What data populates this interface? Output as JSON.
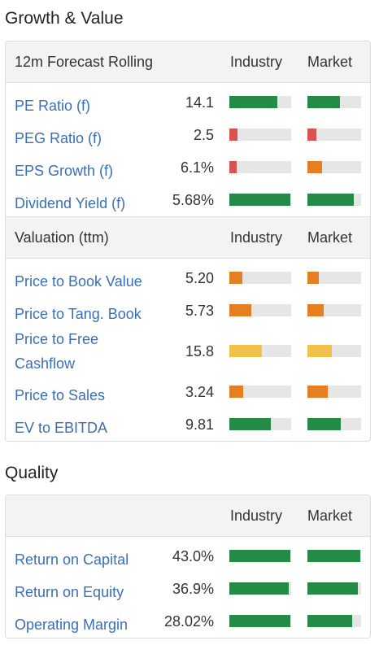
{
  "growth": {
    "title": "Growth & Value",
    "forecast_header": {
      "label": "12m Forecast Rolling",
      "industry": "Industry",
      "market": "Market"
    },
    "forecast_rows": [
      {
        "name": "PE Ratio (f)",
        "value": "14.1",
        "industry_level": 0.78,
        "market_level": 0.6,
        "industry_color": "#238b45",
        "market_color": "#238b45"
      },
      {
        "name": "PEG Ratio (f)",
        "value": "2.5",
        "industry_level": 0.13,
        "market_level": 0.16,
        "industry_color": "#d9534f",
        "market_color": "#d9534f"
      },
      {
        "name": "EPS Growth (f)",
        "value": "6.1%",
        "industry_level": 0.12,
        "market_level": 0.27,
        "industry_color": "#d9534f",
        "market_color": "#e67e22"
      },
      {
        "name": "Dividend Yield (f)",
        "value": "5.68%",
        "industry_level": 0.99,
        "market_level": 0.86,
        "industry_color": "#238b45",
        "market_color": "#238b45"
      }
    ],
    "valuation_header": {
      "label": "Valuation (ttm)",
      "industry": "Industry",
      "market": "Market"
    },
    "valuation_rows": [
      {
        "name": "Price to Book Value",
        "value": "5.20",
        "industry_level": 0.21,
        "market_level": 0.21,
        "industry_color": "#e67e22",
        "market_color": "#e67e22"
      },
      {
        "name": "Price to Tang. Book",
        "value": "5.73",
        "industry_level": 0.35,
        "market_level": 0.3,
        "industry_color": "#e67e22",
        "market_color": "#e67e22"
      },
      {
        "name": "Price to Free Cashflow",
        "value": "15.8",
        "industry_level": 0.53,
        "market_level": 0.45,
        "industry_color": "#f0c24b",
        "market_color": "#f0c24b"
      },
      {
        "name": "Price to Sales",
        "value": "3.24",
        "industry_level": 0.22,
        "market_level": 0.38,
        "industry_color": "#e67e22",
        "market_color": "#e67e22"
      },
      {
        "name": "EV to EBITDA",
        "value": "9.81",
        "industry_level": 0.67,
        "market_level": 0.62,
        "industry_color": "#238b45",
        "market_color": "#238b45"
      }
    ]
  },
  "quality": {
    "title": "Quality",
    "header": {
      "label": "",
      "industry": "Industry",
      "market": "Market"
    },
    "rows": [
      {
        "name": "Return on Capital",
        "value": "43.0%",
        "industry_level": 0.99,
        "market_level": 0.98,
        "industry_color": "#238b45",
        "market_color": "#238b45"
      },
      {
        "name": "Return on Equity",
        "value": "36.9%",
        "industry_level": 0.96,
        "market_level": 0.94,
        "industry_color": "#238b45",
        "market_color": "#238b45"
      },
      {
        "name": "Operating Margin",
        "value": "28.02%",
        "industry_level": 0.99,
        "market_level": 0.83,
        "industry_color": "#238b45",
        "market_color": "#238b45"
      }
    ]
  }
}
